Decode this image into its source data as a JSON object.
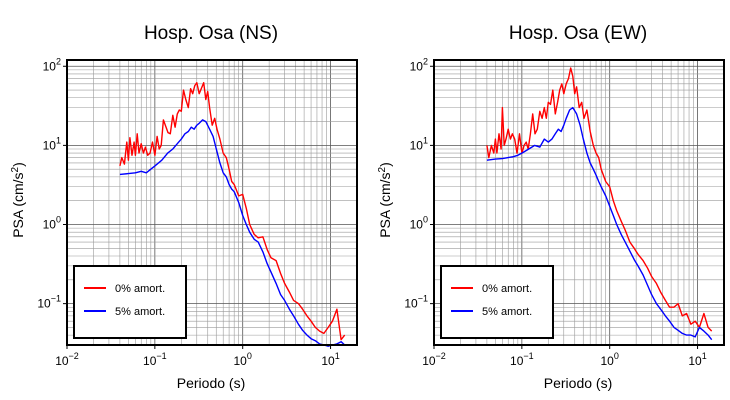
{
  "chart_data": [
    {
      "type": "line",
      "title": "Hosp. Osa (NS)",
      "xlabel": "Periodo (s)",
      "ylabel_main": "PSA (cm/s",
      "ylabel_sup": "2",
      "ylabel_tail": ")",
      "x_scale": "log",
      "y_scale": "log",
      "xlim": [
        0.01,
        20
      ],
      "ylim": [
        0.03,
        120
      ],
      "x_ticks": [
        {
          "base": "10",
          "exp": "−2"
        },
        {
          "base": "10",
          "exp": "−1"
        },
        {
          "base": "10",
          "exp": "0"
        },
        {
          "base": "10",
          "exp": "1"
        }
      ],
      "y_ticks": [
        {
          "base": "10",
          "exp": "−1"
        },
        {
          "base": "10",
          "exp": "0"
        },
        {
          "base": "10",
          "exp": "1"
        },
        {
          "base": "10",
          "exp": "2"
        }
      ],
      "grid": true,
      "legend_position": "bottom-left",
      "series": [
        {
          "name": "0% amort.",
          "color": "#ff0000",
          "x": [
            0.04,
            0.042,
            0.045,
            0.048,
            0.05,
            0.052,
            0.055,
            0.058,
            0.06,
            0.063,
            0.066,
            0.07,
            0.074,
            0.078,
            0.083,
            0.088,
            0.094,
            0.1,
            0.106,
            0.112,
            0.118,
            0.125,
            0.133,
            0.141,
            0.15,
            0.16,
            0.17,
            0.18,
            0.19,
            0.2,
            0.212,
            0.225,
            0.24,
            0.255,
            0.27,
            0.285,
            0.3,
            0.32,
            0.34,
            0.36,
            0.38,
            0.4,
            0.42,
            0.45,
            0.48,
            0.51,
            0.55,
            0.6,
            0.65,
            0.7,
            0.75,
            0.8,
            0.9,
            1.0,
            1.1,
            1.2,
            1.35,
            1.5,
            1.7,
            1.9,
            2.1,
            2.4,
            2.7,
            3.0,
            3.4,
            3.8,
            4.3,
            4.8,
            5.4,
            6.0,
            6.7,
            7.5,
            8.4,
            9.4,
            10.5,
            11.8,
            13.2,
            14.5
          ],
          "y": [
            5.5,
            7,
            5.8,
            11,
            6.5,
            12.5,
            7.5,
            11,
            7.5,
            14,
            8,
            10.5,
            8,
            9.5,
            7.5,
            8,
            11,
            7.5,
            13,
            9,
            10,
            21,
            17.5,
            14.5,
            14,
            24,
            17,
            25,
            28,
            27,
            50,
            38,
            30,
            52,
            45,
            57,
            62,
            45,
            53,
            62,
            38,
            48,
            30,
            18,
            22,
            16,
            12,
            8,
            7,
            5,
            3.5,
            3.2,
            2.3,
            2.4,
            1.6,
            1.0,
            0.75,
            0.68,
            0.7,
            0.48,
            0.38,
            0.35,
            0.24,
            0.18,
            0.14,
            0.11,
            0.1,
            0.085,
            0.07,
            0.06,
            0.05,
            0.045,
            0.042,
            0.05,
            0.06,
            0.085,
            0.035,
            0.04
          ]
        },
        {
          "name": "5% amort.",
          "color": "#0000ff",
          "x": [
            0.04,
            0.05,
            0.06,
            0.07,
            0.08,
            0.09,
            0.1,
            0.12,
            0.14,
            0.16,
            0.18,
            0.2,
            0.22,
            0.24,
            0.26,
            0.28,
            0.3,
            0.32,
            0.35,
            0.38,
            0.42,
            0.46,
            0.5,
            0.55,
            0.6,
            0.65,
            0.7,
            0.75,
            0.8,
            0.9,
            1.0,
            1.1,
            1.2,
            1.35,
            1.5,
            1.7,
            1.9,
            2.1,
            2.4,
            2.7,
            3.0,
            3.4,
            3.8,
            4.3,
            4.8,
            5.4,
            6.0,
            6.7,
            7.5,
            8.4,
            9.4,
            10.5,
            11.8,
            13.2,
            14.5
          ],
          "y": [
            4.3,
            4.4,
            4.5,
            4.7,
            4.5,
            5,
            5.5,
            6.5,
            8,
            9,
            10.5,
            12,
            14,
            15,
            17,
            16,
            18,
            19,
            21,
            20,
            16,
            13,
            9,
            6,
            4.5,
            4,
            3.2,
            2.8,
            2.6,
            1.9,
            1.3,
            1.0,
            0.8,
            0.65,
            0.6,
            0.45,
            0.32,
            0.25,
            0.18,
            0.13,
            0.11,
            0.085,
            0.07,
            0.055,
            0.046,
            0.04,
            0.036,
            0.034,
            0.031,
            0.03,
            0.029,
            0.03,
            0.031,
            0.033,
            0.03
          ]
        }
      ]
    },
    {
      "type": "line",
      "title": "Hosp. Osa (EW)",
      "xlabel": "Periodo (s)",
      "ylabel_main": "PSA (cm/s",
      "ylabel_sup": "2",
      "ylabel_tail": ")",
      "x_scale": "log",
      "y_scale": "log",
      "xlim": [
        0.01,
        20
      ],
      "ylim": [
        0.03,
        120
      ],
      "x_ticks": [
        {
          "base": "10",
          "exp": "−2"
        },
        {
          "base": "10",
          "exp": "−1"
        },
        {
          "base": "10",
          "exp": "0"
        },
        {
          "base": "10",
          "exp": "1"
        }
      ],
      "y_ticks": [
        {
          "base": "10",
          "exp": "−1"
        },
        {
          "base": "10",
          "exp": "0"
        },
        {
          "base": "10",
          "exp": "1"
        },
        {
          "base": "10",
          "exp": "2"
        }
      ],
      "grid": true,
      "legend_position": "bottom-left",
      "series": [
        {
          "name": "0% amort.",
          "color": "#ff0000",
          "x": [
            0.04,
            0.042,
            0.045,
            0.048,
            0.05,
            0.052,
            0.055,
            0.058,
            0.06,
            0.063,
            0.066,
            0.07,
            0.074,
            0.078,
            0.083,
            0.088,
            0.094,
            0.1,
            0.106,
            0.112,
            0.118,
            0.125,
            0.133,
            0.141,
            0.15,
            0.16,
            0.17,
            0.18,
            0.19,
            0.2,
            0.212,
            0.225,
            0.24,
            0.255,
            0.27,
            0.285,
            0.3,
            0.32,
            0.34,
            0.36,
            0.38,
            0.4,
            0.42,
            0.45,
            0.48,
            0.51,
            0.55,
            0.6,
            0.65,
            0.7,
            0.75,
            0.8,
            0.9,
            1.0,
            1.1,
            1.2,
            1.35,
            1.5,
            1.7,
            1.9,
            2.1,
            2.4,
            2.7,
            3.0,
            3.4,
            3.8,
            4.3,
            4.8,
            5.4,
            6.0,
            6.7,
            7.5,
            8.4,
            9.4,
            10.5,
            11.8,
            13.2,
            14.5
          ],
          "y": [
            10,
            7,
            10,
            8,
            12,
            8,
            14,
            9,
            30,
            10,
            12,
            16,
            12,
            14,
            12,
            8,
            14,
            8,
            10,
            11,
            9,
            14,
            25,
            14,
            16,
            27,
            22,
            30,
            22,
            35,
            33,
            50,
            25,
            35,
            50,
            60,
            45,
            60,
            70,
            95,
            75,
            45,
            55,
            30,
            35,
            22,
            28,
            15,
            10,
            8,
            7,
            5,
            3.5,
            3.0,
            2.0,
            1.5,
            1.1,
            0.85,
            0.6,
            0.5,
            0.42,
            0.35,
            0.28,
            0.22,
            0.18,
            0.14,
            0.11,
            0.09,
            0.09,
            0.1,
            0.07,
            0.075,
            0.055,
            0.06,
            0.05,
            0.075,
            0.05,
            0.045
          ]
        },
        {
          "name": "5% amort.",
          "color": "#0000ff",
          "x": [
            0.04,
            0.05,
            0.06,
            0.07,
            0.08,
            0.09,
            0.1,
            0.12,
            0.14,
            0.16,
            0.18,
            0.2,
            0.22,
            0.24,
            0.26,
            0.28,
            0.3,
            0.32,
            0.35,
            0.38,
            0.42,
            0.46,
            0.5,
            0.55,
            0.6,
            0.65,
            0.7,
            0.75,
            0.8,
            0.9,
            1.0,
            1.1,
            1.2,
            1.35,
            1.5,
            1.7,
            1.9,
            2.1,
            2.4,
            2.7,
            3.0,
            3.4,
            3.8,
            4.3,
            4.8,
            5.4,
            6.0,
            6.7,
            7.5,
            8.4,
            9.4,
            10.5,
            11.8,
            13.2,
            14.5
          ],
          "y": [
            6.5,
            6.7,
            6.8,
            7,
            7.2,
            7.5,
            8,
            9,
            10,
            9.5,
            12,
            11,
            12,
            14,
            16,
            15,
            18,
            22,
            28,
            30,
            25,
            18,
            12,
            8,
            6,
            5,
            4.2,
            3.5,
            3.0,
            2.3,
            1.7,
            1.3,
            1.0,
            0.75,
            0.6,
            0.46,
            0.36,
            0.3,
            0.23,
            0.17,
            0.13,
            0.1,
            0.085,
            0.07,
            0.06,
            0.05,
            0.046,
            0.042,
            0.04,
            0.04,
            0.038,
            0.05,
            0.045,
            0.04,
            0.035
          ]
        }
      ]
    }
  ]
}
